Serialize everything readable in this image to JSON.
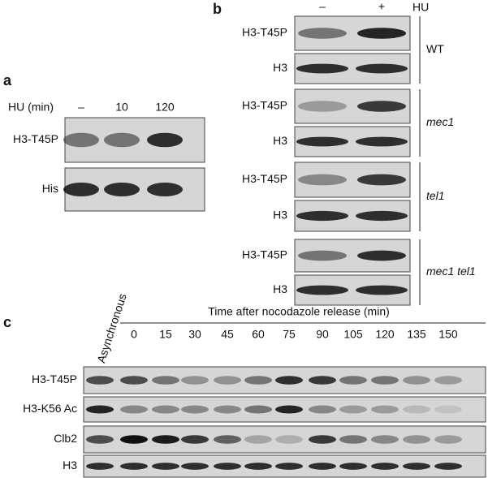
{
  "panel_a": {
    "label": "a",
    "condition": "HU (min)",
    "lanes": [
      "–",
      "10",
      "120"
    ],
    "blots": [
      "H3-T45P",
      "His"
    ]
  },
  "panel_b": {
    "label": "b",
    "lanes": [
      "–",
      "+"
    ],
    "condition": "HU",
    "strains": [
      {
        "name": "WT",
        "blots": [
          "H3-T45P",
          "H3"
        ]
      },
      {
        "name": "mec1",
        "blots": [
          "H3-T45P",
          "H3"
        ]
      },
      {
        "name": "tel1",
        "blots": [
          "H3-T45P",
          "H3"
        ]
      },
      {
        "name": "mec1 tel1",
        "blots": [
          "H3-T45P",
          "H3"
        ]
      }
    ]
  },
  "panel_c": {
    "label": "c",
    "control_lane": "Asynchronous",
    "time_title": "Time after nocodazole release (min)",
    "timepoints": [
      "0",
      "15",
      "30",
      "45",
      "60",
      "75",
      "90",
      "105",
      "120",
      "135",
      "150"
    ],
    "blots": [
      "H3-T45P",
      "H3-K56 Ac",
      "Clb2",
      "H3"
    ]
  }
}
